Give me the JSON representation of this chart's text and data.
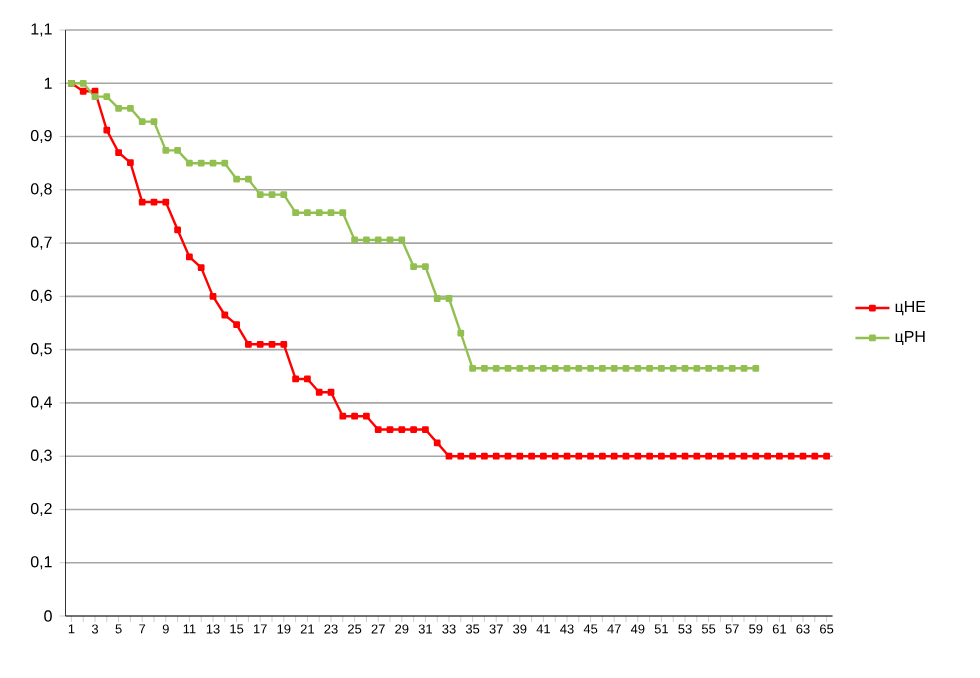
{
  "chart_data": {
    "type": "line",
    "categories": [
      "1",
      null,
      "3",
      null,
      "5",
      null,
      "7",
      null,
      "9",
      null,
      "11",
      null,
      "13",
      null,
      "15",
      null,
      "17",
      null,
      "19",
      null,
      "21",
      null,
      "23",
      null,
      "25",
      null,
      "27",
      null,
      "29",
      null,
      "31",
      null,
      "33",
      null,
      "35",
      null,
      "37",
      null,
      "39",
      null,
      "41",
      null,
      "43",
      null,
      "45",
      null,
      "47",
      null,
      "49",
      null,
      "51",
      null,
      "53",
      null,
      "55",
      null,
      "57",
      null,
      "59",
      null,
      "61",
      null,
      "63",
      null,
      "65"
    ],
    "series": [
      {
        "name": "цHE",
        "color": "#ff0000",
        "values": [
          1.0,
          0.985,
          0.985,
          0.912,
          0.87,
          0.851,
          0.777,
          0.777,
          0.777,
          0.725,
          0.674,
          0.654,
          0.6,
          0.565,
          0.547,
          0.51,
          0.51,
          0.51,
          0.51,
          0.445,
          0.445,
          0.42,
          0.42,
          0.375,
          0.375,
          0.375,
          0.35,
          0.35,
          0.35,
          0.35,
          0.35,
          0.325,
          0.3,
          0.3,
          0.3,
          0.3,
          0.3,
          0.3,
          0.3,
          0.3,
          0.3,
          0.3,
          0.3,
          0.3,
          0.3,
          0.3,
          0.3,
          0.3,
          0.3,
          0.3,
          0.3,
          0.3,
          0.3,
          0.3,
          0.3,
          0.3,
          0.3,
          0.3,
          0.3,
          0.3,
          0.3,
          0.3,
          0.3,
          0.3,
          0.3
        ]
      },
      {
        "name": "цPH",
        "color": "#92c050",
        "values": [
          1.0,
          1.0,
          0.975,
          0.975,
          0.953,
          0.953,
          0.928,
          0.928,
          0.874,
          0.874,
          0.85,
          0.85,
          0.85,
          0.85,
          0.82,
          0.82,
          0.791,
          0.791,
          0.791,
          0.757,
          0.757,
          0.757,
          0.757,
          0.757,
          0.706,
          0.706,
          0.706,
          0.706,
          0.706,
          0.656,
          0.656,
          0.596,
          0.596,
          0.531,
          0.465,
          0.465,
          0.465,
          0.465,
          0.465,
          0.465,
          0.465,
          0.465,
          0.465,
          0.465,
          0.465,
          0.465,
          0.465,
          0.465,
          0.465,
          0.465,
          0.465,
          0.465,
          0.465,
          0.465,
          0.465,
          0.465,
          0.465,
          0.465,
          0.465,
          null,
          null,
          null,
          null,
          null,
          null
        ]
      }
    ],
    "ylim": [
      0,
      1.1
    ],
    "yticks": [
      {
        "value": 0,
        "label": "0"
      },
      {
        "value": 0.1,
        "label": "0,1"
      },
      {
        "value": 0.2,
        "label": "0,2"
      },
      {
        "value": 0.3,
        "label": "0,3"
      },
      {
        "value": 0.4,
        "label": "0,4"
      },
      {
        "value": 0.5,
        "label": "0,5"
      },
      {
        "value": 0.6,
        "label": "0,6"
      },
      {
        "value": 0.7,
        "label": "0,7"
      },
      {
        "value": 0.8,
        "label": "0,8"
      },
      {
        "value": 0.9,
        "label": "0,9"
      },
      {
        "value": 1,
        "label": "1"
      },
      {
        "value": 1.1,
        "label": "1,1"
      }
    ],
    "grid": "y",
    "legend": "right",
    "marker": "square",
    "line_style": "solid"
  }
}
